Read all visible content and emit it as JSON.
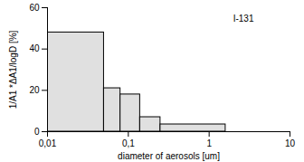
{
  "chart_data": {
    "type": "histogram",
    "title": "I-131",
    "xlabel": "diameter of aerosols [um]",
    "ylabel": "1/A1 *ΔA1/logD [%]",
    "bins": [
      0.01,
      0.05,
      0.08,
      0.14,
      0.25,
      1.6
    ],
    "values": [
      48,
      21,
      18,
      7,
      3.5
    ],
    "color": "#e0e0e0",
    "log": "x",
    "xlim": [
      0.01,
      10
    ],
    "xticks": [
      {
        "value": 0.01,
        "label": "0,01"
      },
      {
        "value": 0.1,
        "label": "0,1"
      },
      1,
      10
    ],
    "ylim": [
      0,
      60
    ],
    "yticks": [
      0,
      20,
      40,
      60
    ],
    "grid": false
  }
}
